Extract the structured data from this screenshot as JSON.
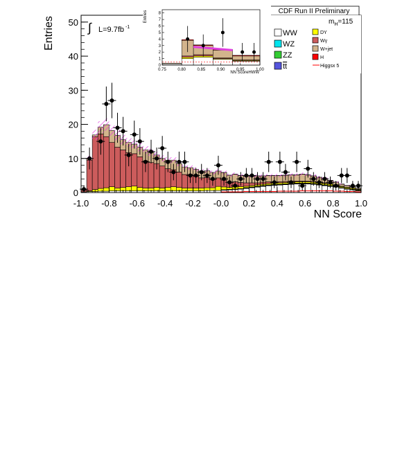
{
  "chart_data": [
    {
      "type": "bar",
      "stacked": true,
      "title": "CDF Run II Preliminary",
      "xlabel": "NN Score",
      "ylabel": "Entries",
      "xlim": [
        -1.0,
        1.0
      ],
      "ylim": [
        0,
        52
      ],
      "x_ticks": [
        "-1.0",
        "-0.8",
        "-0.6",
        "-0.4",
        "-0.2",
        "-0.0",
        "0.2",
        "0.4",
        "0.6",
        "0.8",
        "1.0"
      ],
      "y_ticks": [
        "0",
        "10",
        "20",
        "30",
        "40",
        "50"
      ],
      "luminosity": "L=9.7fb",
      "luminosity_exp": "-1",
      "luminosity_symbol": "∫",
      "mass_label": "m",
      "mass_sub": "H",
      "mass_value": "=115",
      "bins": [
        -0.98,
        -0.94,
        -0.9,
        -0.86,
        -0.82,
        -0.78,
        -0.74,
        -0.7,
        -0.66,
        -0.62,
        -0.58,
        -0.54,
        -0.5,
        -0.46,
        -0.42,
        -0.38,
        -0.34,
        -0.3,
        -0.26,
        -0.22,
        -0.18,
        -0.14,
        -0.1,
        -0.06,
        -0.02,
        0.02,
        0.06,
        0.1,
        0.14,
        0.18,
        0.22,
        0.26,
        0.3,
        0.34,
        0.38,
        0.42,
        0.46,
        0.5,
        0.54,
        0.58,
        0.62,
        0.66,
        0.7,
        0.74,
        0.78,
        0.82,
        0.86,
        0.9,
        0.94,
        0.98
      ],
      "bin_width": 0.04,
      "series": [
        {
          "name": "WW",
          "color": "#ffffff",
          "values": [
            0.2,
            0.3,
            0.3,
            0.4,
            0.4,
            0.5,
            0.5,
            0.5,
            0.5,
            0.5,
            0.5,
            0.5,
            0.5,
            0.5,
            0.5,
            0.5,
            0.5,
            0.5,
            0.5,
            0.5,
            0.5,
            0.5,
            0.6,
            0.6,
            0.6,
            0.7,
            0.8,
            0.9,
            1.0,
            1.2,
            1.4,
            1.6,
            1.8,
            2.0,
            2.1,
            2.2,
            2.3,
            2.4,
            2.5,
            2.5,
            2.5,
            2.4,
            2.2,
            2.0,
            1.8,
            1.6,
            1.3,
            1.0,
            0.8,
            0.5
          ]
        },
        {
          "name": "WZ",
          "color": "#00e5ee",
          "values": [
            0,
            0,
            0,
            0,
            0,
            0,
            0,
            0,
            0,
            0,
            0,
            0,
            0,
            0,
            0,
            0,
            0,
            0,
            0,
            0,
            0,
            0,
            0,
            0,
            0,
            0.05,
            0.05,
            0.05,
            0.05,
            0.1,
            0.1,
            0.1,
            0.1,
            0.1,
            0.1,
            0.1,
            0.1,
            0.1,
            0.1,
            0.1,
            0.1,
            0.1,
            0.1,
            0.1,
            0.1,
            0.1,
            0.05,
            0.05,
            0.05,
            0.05
          ]
        },
        {
          "name": "ZZ",
          "color": "#33cc33",
          "values": [
            0,
            0,
            0,
            0,
            0,
            0,
            0,
            0,
            0,
            0,
            0,
            0,
            0,
            0,
            0,
            0,
            0,
            0,
            0,
            0,
            0,
            0,
            0,
            0,
            0,
            0.05,
            0.05,
            0.05,
            0.05,
            0.1,
            0.1,
            0.1,
            0.1,
            0.1,
            0.1,
            0.1,
            0.1,
            0.1,
            0.1,
            0.1,
            0.1,
            0.1,
            0.1,
            0.1,
            0.1,
            0.1,
            0.05,
            0.05,
            0.05,
            0.05
          ]
        },
        {
          "name": "tt",
          "color": "#5555dd",
          "values": [
            0,
            0,
            0,
            0,
            0,
            0,
            0,
            0,
            0,
            0,
            0,
            0,
            0,
            0,
            0,
            0,
            0,
            0,
            0,
            0,
            0,
            0,
            0,
            0,
            0,
            0.05,
            0.05,
            0.05,
            0.05,
            0.05,
            0.05,
            0.05,
            0.05,
            0.05,
            0.05,
            0.05,
            0.05,
            0.05,
            0.05,
            0.05,
            0.05,
            0.05,
            0.05,
            0.05,
            0.05,
            0.05,
            0.05,
            0.05,
            0.05,
            0.05
          ]
        },
        {
          "name": "DY",
          "color": "#ffff00",
          "values": [
            0,
            0.2,
            0.6,
            0.8,
            1.0,
            1.2,
            0.8,
            1.0,
            1.2,
            1.4,
            1.0,
            0.8,
            0.8,
            1.0,
            0.8,
            1.0,
            1.2,
            1.0,
            0.8,
            0.8,
            0.8,
            0.8,
            0.8,
            0.8,
            1.2,
            0.8,
            0.6,
            0.6,
            0.6,
            0.4,
            0.4,
            0.4,
            0.4,
            0.4,
            0.4,
            0.4,
            0.4,
            0.4,
            0.4,
            0.4,
            0.4,
            0.4,
            0.4,
            0.4,
            0.4,
            0.3,
            0.3,
            0.3,
            0.3,
            0.2
          ]
        },
        {
          "name": "Wγ",
          "color": "#cc5c5c",
          "values": [
            0.6,
            9.0,
            15.5,
            16.0,
            15.0,
            13.0,
            12.0,
            11.0,
            10.0,
            9.5,
            9.0,
            8.0,
            7.5,
            7.0,
            6.5,
            5.5,
            5.0,
            4.5,
            4.0,
            4.0,
            3.5,
            3.0,
            3.0,
            2.5,
            2.5,
            2.0,
            1.5,
            1.5,
            1.2,
            1.0,
            0.8,
            0.6,
            0.6,
            0.5,
            0.4,
            0.3,
            0.3,
            0.3,
            0.2,
            0.2,
            0.2,
            0.2,
            0.2,
            0.2,
            0.1,
            0.1,
            0.1,
            0.1,
            0.1,
            0.1
          ]
        },
        {
          "name": "W+jet",
          "color": "#d2b48c",
          "values": [
            0.2,
            0.5,
            0.5,
            2.0,
            3.5,
            3.5,
            3.5,
            3.0,
            3.0,
            2.8,
            2.8,
            3.2,
            3.0,
            2.5,
            2.2,
            2.5,
            2.8,
            2.5,
            2.2,
            2.0,
            2.0,
            2.0,
            2.0,
            2.0,
            2.0,
            2.2,
            2.0,
            2.2,
            2.0,
            2.0,
            2.0,
            2.0,
            1.8,
            1.8,
            1.8,
            1.8,
            1.8,
            1.8,
            1.8,
            2.0,
            1.8,
            1.6,
            1.4,
            1.2,
            1.0,
            0.8,
            0.6,
            0.5,
            0.4,
            0.3
          ]
        },
        {
          "name": "H",
          "color": "#ff0000",
          "values": [
            0,
            0,
            0,
            0,
            0,
            0,
            0,
            0,
            0,
            0,
            0,
            0,
            0,
            0,
            0,
            0,
            0,
            0,
            0,
            0,
            0,
            0,
            0,
            0,
            0,
            0.05,
            0.05,
            0.05,
            0.05,
            0.05,
            0.05,
            0.05,
            0.05,
            0.05,
            0.05,
            0.05,
            0.05,
            0.05,
            0.05,
            0.05,
            0.05,
            0.05,
            0.05,
            0.05,
            0.05,
            0.05,
            0.05,
            0.05,
            0.05,
            0.05
          ]
        }
      ],
      "higgs_x5": {
        "name": "Higgsx 5",
        "color": "#ff0000",
        "values": [
          0,
          0,
          0,
          0,
          0,
          0,
          0,
          0,
          0,
          0,
          0,
          0,
          0,
          0,
          0,
          0,
          0,
          0,
          0,
          0,
          0,
          0,
          0,
          0,
          0,
          0.2,
          0.2,
          0.2,
          0.2,
          0.3,
          0.3,
          0.3,
          0.3,
          0.3,
          0.3,
          0.4,
          0.4,
          0.4,
          0.4,
          0.5,
          0.5,
          0.5,
          0.5,
          0.5,
          0.5,
          0.4,
          0.4,
          0.3,
          0.3,
          0.2
        ]
      },
      "uncertainty_band": {
        "color": "#e040e0",
        "fraction": 0.09
      },
      "data": {
        "name": "Data",
        "points": [
          {
            "x": -0.98,
            "y": 1,
            "err": 1.0
          },
          {
            "x": -0.94,
            "y": 10,
            "err": 3.2
          },
          {
            "x": -0.86,
            "y": 15,
            "err": 3.9
          },
          {
            "x": -0.82,
            "y": 26,
            "err": 5.1
          },
          {
            "x": -0.78,
            "y": 27,
            "err": 5.2
          },
          {
            "x": -0.74,
            "y": 19,
            "err": 4.4
          },
          {
            "x": -0.7,
            "y": 18,
            "err": 4.2
          },
          {
            "x": -0.66,
            "y": 11,
            "err": 3.3
          },
          {
            "x": -0.62,
            "y": 17,
            "err": 4.1
          },
          {
            "x": -0.58,
            "y": 15,
            "err": 3.9
          },
          {
            "x": -0.54,
            "y": 9,
            "err": 3.0
          },
          {
            "x": -0.5,
            "y": 12,
            "err": 3.5
          },
          {
            "x": -0.46,
            "y": 10,
            "err": 3.2
          },
          {
            "x": -0.42,
            "y": 13,
            "err": 3.6
          },
          {
            "x": -0.38,
            "y": 9,
            "err": 3.0
          },
          {
            "x": -0.34,
            "y": 6,
            "err": 2.4
          },
          {
            "x": -0.3,
            "y": 9,
            "err": 3.0
          },
          {
            "x": -0.26,
            "y": 9,
            "err": 3.0
          },
          {
            "x": -0.22,
            "y": 5,
            "err": 2.2
          },
          {
            "x": -0.18,
            "y": 5,
            "err": 2.2
          },
          {
            "x": -0.14,
            "y": 6,
            "err": 2.4
          },
          {
            "x": -0.1,
            "y": 5,
            "err": 2.2
          },
          {
            "x": -0.06,
            "y": 4,
            "err": 2.0
          },
          {
            "x": -0.02,
            "y": 8,
            "err": 2.8
          },
          {
            "x": 0.02,
            "y": 4,
            "err": 2.0
          },
          {
            "x": 0.06,
            "y": 3,
            "err": 1.7
          },
          {
            "x": 0.1,
            "y": 2,
            "err": 1.4
          },
          {
            "x": 0.14,
            "y": 4,
            "err": 2.0
          },
          {
            "x": 0.18,
            "y": 5,
            "err": 2.2
          },
          {
            "x": 0.22,
            "y": 5,
            "err": 2.2
          },
          {
            "x": 0.26,
            "y": 4,
            "err": 2.0
          },
          {
            "x": 0.3,
            "y": 4,
            "err": 2.0
          },
          {
            "x": 0.34,
            "y": 9,
            "err": 3.0
          },
          {
            "x": 0.38,
            "y": 3,
            "err": 1.7
          },
          {
            "x": 0.42,
            "y": 9,
            "err": 3.0
          },
          {
            "x": 0.46,
            "y": 6,
            "err": 2.4
          },
          {
            "x": 0.5,
            "y": 3,
            "err": 1.7
          },
          {
            "x": 0.54,
            "y": 9,
            "err": 3.0
          },
          {
            "x": 0.58,
            "y": 2,
            "err": 1.4
          },
          {
            "x": 0.62,
            "y": 7,
            "err": 2.6
          },
          {
            "x": 0.66,
            "y": 4,
            "err": 2.0
          },
          {
            "x": 0.7,
            "y": 3,
            "err": 1.7
          },
          {
            "x": 0.74,
            "y": 4,
            "err": 2.0
          },
          {
            "x": 0.78,
            "y": 3,
            "err": 1.7
          },
          {
            "x": 0.82,
            "y": 2,
            "err": 1.4
          },
          {
            "x": 0.86,
            "y": 5,
            "err": 2.2
          },
          {
            "x": 0.9,
            "y": 5,
            "err": 2.2
          },
          {
            "x": 0.94,
            "y": 2,
            "err": 1.4
          },
          {
            "x": 0.98,
            "y": 2,
            "err": 1.4
          }
        ]
      },
      "legend": {
        "placement": "top-right",
        "entries": [
          {
            "label": "WW",
            "color": "#ffffff"
          },
          {
            "label": "DY",
            "color": "#ffff00"
          },
          {
            "label": "WZ",
            "color": "#00e5ee"
          },
          {
            "label": "Wγ",
            "color": "#cc5c5c"
          },
          {
            "label": "ZZ",
            "color": "#33cc33"
          },
          {
            "label": "W+jet",
            "color": "#d2b48c"
          },
          {
            "label": "tt",
            "label_overline": "tt",
            "color": "#5555dd"
          },
          {
            "label": "H",
            "color": "#ff0000"
          },
          {
            "label": "Higgsx 5",
            "color": "#ff0000",
            "line": true
          }
        ]
      }
    },
    {
      "type": "bar",
      "stacked": true,
      "inset": true,
      "xlabel": "NN ScoreHWW",
      "ylabel": "Entries",
      "xlim": [
        0.75,
        1.0
      ],
      "ylim": [
        0,
        8.5
      ],
      "x_ticks": [
        "0.75",
        "0.80",
        "0.85",
        "0.90",
        "0.95",
        "1.00"
      ],
      "y_ticks": [
        "0",
        "1",
        "2",
        "3",
        "4",
        "5",
        "6",
        "7",
        "8"
      ],
      "bin_edges": [
        0.75,
        0.8,
        0.83,
        0.88,
        0.93,
        1.0
      ],
      "series": [
        {
          "name": "WW",
          "color": "#ffffff",
          "values": [
            0.2,
            1.0,
            1.2,
            0.9,
            0.6
          ]
        },
        {
          "name": "DY",
          "color": "#ffff00",
          "values": [
            0.0,
            0.2,
            0.2,
            0.1,
            0.1
          ]
        },
        {
          "name": "Wγ",
          "color": "#cc5c5c",
          "values": [
            0.0,
            0.2,
            0.2,
            0.1,
            0.1
          ]
        },
        {
          "name": "W+jet",
          "color": "#d2b48c",
          "values": [
            0.1,
            2.4,
            1.4,
            1.2,
            0.6
          ]
        },
        {
          "name": "H",
          "color": "#ff0000",
          "values": [
            0.0,
            0.1,
            0.1,
            0.1,
            0.1
          ]
        }
      ],
      "higgs_band": {
        "color": "#e040e0",
        "x": [
          0.83,
          0.93
        ],
        "y": [
          2.8,
          2.3
        ]
      },
      "data": {
        "points": [
          {
            "x": 0.815,
            "y": 4,
            "err": 2.0
          },
          {
            "x": 0.855,
            "y": 3,
            "err": 1.7
          },
          {
            "x": 0.905,
            "y": 5,
            "err": 2.2
          },
          {
            "x": 0.955,
            "y": 2,
            "err": 1.4
          },
          {
            "x": 0.985,
            "y": 2,
            "err": 1.4
          }
        ]
      }
    }
  ]
}
